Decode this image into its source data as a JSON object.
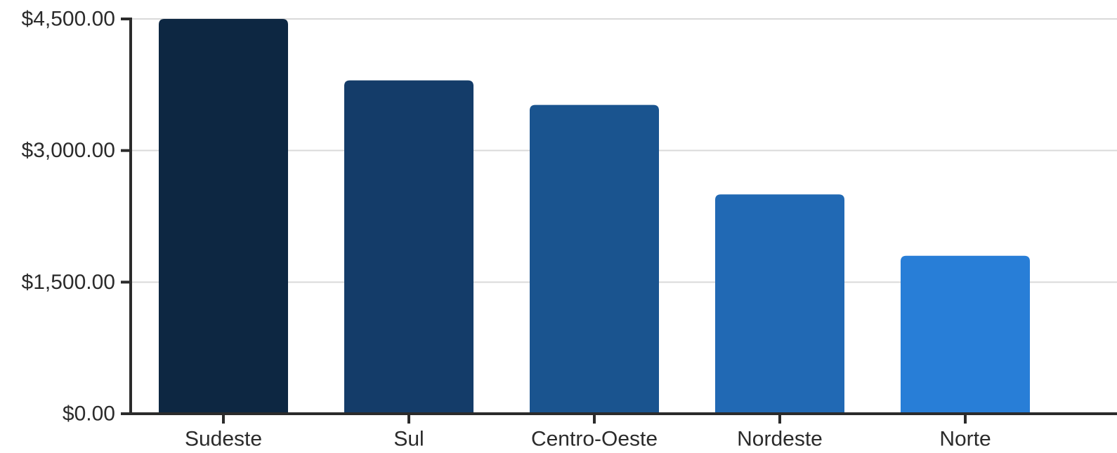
{
  "chart_data": {
    "type": "bar",
    "title": "",
    "xlabel": "",
    "ylabel": "",
    "categories": [
      "Sudeste",
      "Sul",
      "Centro-Oeste",
      "Nordeste",
      "Norte"
    ],
    "values": [
      4500,
      3800,
      3520,
      2500,
      1800
    ],
    "ylim": [
      0,
      4500
    ],
    "yticks": [
      0,
      1500,
      3000,
      4500
    ],
    "ytick_labels": [
      "$0.00",
      "$1,500.00",
      "$3,000.00",
      "$4,500.00"
    ],
    "grid": true,
    "legend": "none",
    "colors": [
      "#0d2742",
      "#143c69",
      "#1a548f",
      "#2169b4",
      "#287ed7"
    ]
  }
}
